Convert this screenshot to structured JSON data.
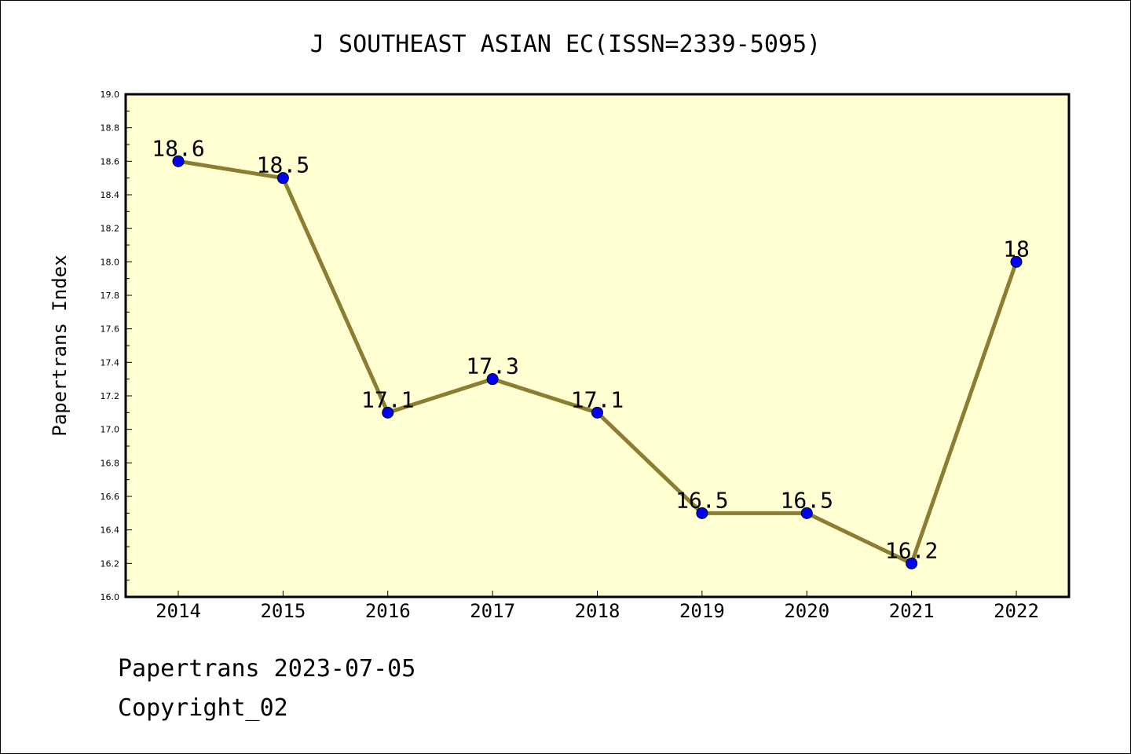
{
  "chart_data": {
    "type": "line",
    "title": "J SOUTHEAST ASIAN EC(ISSN=2339-5095)",
    "ylabel": "Papertrans Index",
    "xlabel": "",
    "categories": [
      "2014",
      "2015",
      "2016",
      "2017",
      "2018",
      "2019",
      "2020",
      "2021",
      "2022"
    ],
    "series": [
      {
        "values": [
          18.6,
          18.5,
          17.1,
          17.3,
          17.1,
          16.5,
          16.5,
          16.2,
          18.0
        ],
        "labels": [
          "18.6",
          "18.5",
          "17.1",
          "17.3",
          "17.1",
          "16.5",
          "16.5",
          "16.2",
          "18"
        ],
        "line_color": "#8b7d32",
        "marker_color": "#0000ff"
      }
    ],
    "ylim": [
      16.0,
      19.0
    ],
    "yticks": [
      "16.0",
      "16.2",
      "16.4",
      "16.6",
      "16.8",
      "17.0",
      "17.2",
      "17.4",
      "17.6",
      "17.8",
      "18.0",
      "18.2",
      "18.4",
      "18.6",
      "18.8",
      "19.0"
    ],
    "plot_background": "#ffffd2",
    "grid": false,
    "legend": "none"
  },
  "footer": {
    "line1": "Papertrans 2023-07-05",
    "line2": "Copyright_02"
  }
}
